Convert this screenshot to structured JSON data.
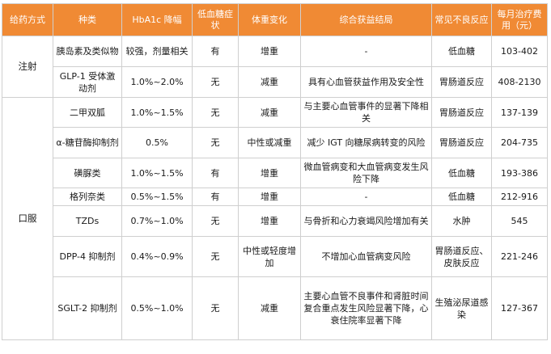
{
  "headers": [
    "给药方式",
    "种类",
    "HbA1c 降幅",
    "低血糖症状",
    "体重变化",
    "综合获益结局",
    "常见不良反应",
    "每月治疗费用（元）"
  ],
  "routes": {
    "injection": "注射",
    "oral": "口服"
  },
  "rows": [
    {
      "type": "胰岛素及类似物",
      "hba1c": "较强，剂量相关",
      "hypo": "有",
      "weight": "增重",
      "benefit": "-",
      "adverse": "低血糖",
      "cost": "103-402"
    },
    {
      "type": "GLP-1 受体激动剂",
      "hba1c": "1.0%~2.0%",
      "hypo": "无",
      "weight": "减重",
      "benefit": "具有心血管获益作用及安全性",
      "adverse": "胃肠道反应",
      "cost": "408-2130"
    },
    {
      "type": "二甲双胍",
      "hba1c": "1.0%~1.5%",
      "hypo": "无",
      "weight": "减重",
      "benefit": "与主要心血管事件的显著下降相关",
      "adverse": "胃肠道反应",
      "cost": "137-139"
    },
    {
      "type": "α-糖苷酶抑制剂",
      "hba1c": "0.5%",
      "hypo": "无",
      "weight": "中性或减重",
      "benefit": "减少 IGT 向糖尿病转变的风险",
      "adverse": "胃肠道反应",
      "cost": "204-735"
    },
    {
      "type": "磺脲类",
      "hba1c": "1.0%~1.5%",
      "hypo": "有",
      "weight": "增重",
      "benefit": "微血管病变和大血管病变发生风险下降",
      "adverse": "低血糖",
      "cost": "193-386"
    },
    {
      "type": "格列奈类",
      "hba1c": "0.5%~1.5%",
      "hypo": "有",
      "weight": "增重",
      "benefit": "-",
      "adverse": "低血糖",
      "cost": "212-916"
    },
    {
      "type": "TZDs",
      "hba1c": "0.7%~1.0%",
      "hypo": "无",
      "weight": "增重",
      "benefit": "与骨折和心力衰竭风险增加有关",
      "adverse": "水肿",
      "cost": "545"
    },
    {
      "type": "DPP-4 抑制剂",
      "hba1c": "0.4%~0.9%",
      "hypo": "无",
      "weight": "中性或轻度增加",
      "benefit": "不增加心血管病变风险",
      "adverse": "胃肠道反应、皮肤反应",
      "cost": "221-246"
    },
    {
      "type": "SGLT-2 抑制剂",
      "hba1c": "0.5%~1.0%",
      "hypo": "无",
      "weight": "减重",
      "benefit": "主要心血管不良事件和肾脏时间复合重点发生风险显著下降，心衰住院率显著下降",
      "adverse": "生殖泌尿道感染",
      "cost": "127-367"
    }
  ]
}
